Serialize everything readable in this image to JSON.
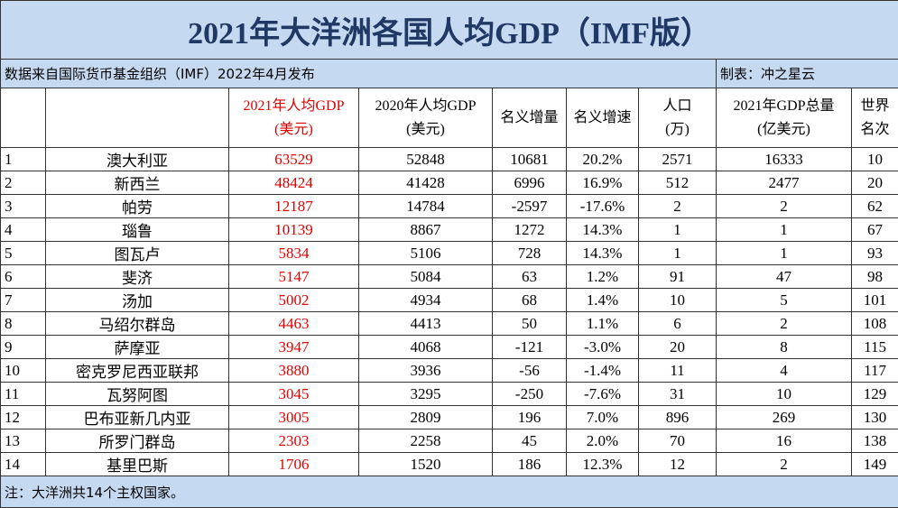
{
  "title": "2021年大洋洲各国人均GDP（IMF版）",
  "source": "数据来自国际货币基金组织（IMF）2022年4月发布",
  "author": "制表：冲之星云",
  "header": [
    [
      "2021年人均GDP",
      "(美元)"
    ],
    [
      "2020年人均GDP",
      "(美元)"
    ],
    [
      "名义增量"
    ],
    [
      "名义增速"
    ],
    [
      "人口",
      "(万)"
    ],
    [
      "2021年GDP总量",
      "(亿美元)"
    ],
    [
      "世界",
      "名次"
    ]
  ],
  "rows": [
    [
      1,
      "澳大利亚",
      63529,
      52848,
      10681,
      "20.2%",
      2571,
      16333,
      10
    ],
    [
      2,
      "新西兰",
      48424,
      41428,
      6996,
      "16.9%",
      512,
      2477,
      20
    ],
    [
      3,
      "帕劳",
      12187,
      14784,
      -2597,
      "-17.6%",
      2,
      2,
      62
    ],
    [
      4,
      "瑙鲁",
      10139,
      8867,
      1272,
      "14.3%",
      1,
      1,
      67
    ],
    [
      5,
      "图瓦卢",
      5834,
      5106,
      728,
      "14.3%",
      1,
      1,
      93
    ],
    [
      6,
      "斐济",
      5147,
      5084,
      63,
      "1.2%",
      91,
      47,
      98
    ],
    [
      7,
      "汤加",
      5002,
      4934,
      68,
      "1.4%",
      10,
      5,
      101
    ],
    [
      8,
      "马绍尔群岛",
      4463,
      4413,
      50,
      "1.1%",
      6,
      2,
      108
    ],
    [
      9,
      "萨摩亚",
      3947,
      4068,
      -121,
      "-3.0%",
      20,
      8,
      115
    ],
    [
      10,
      "密克罗尼西亚联邦",
      3880,
      3936,
      -56,
      "-1.4%",
      11,
      4,
      117
    ],
    [
      11,
      "瓦努阿图",
      3045,
      3295,
      -250,
      "-7.6%",
      31,
      10,
      129
    ],
    [
      12,
      "巴布亚新几内亚",
      3005,
      2809,
      196,
      "7.0%",
      896,
      269,
      130
    ],
    [
      13,
      "所罗门群岛",
      2303,
      2258,
      45,
      "2.0%",
      70,
      16,
      138
    ],
    [
      14,
      "基里巴斯",
      1706,
      1520,
      186,
      "12.3%",
      12,
      2,
      149
    ]
  ],
  "note": "注：大洋洲共14个主权国家。"
}
